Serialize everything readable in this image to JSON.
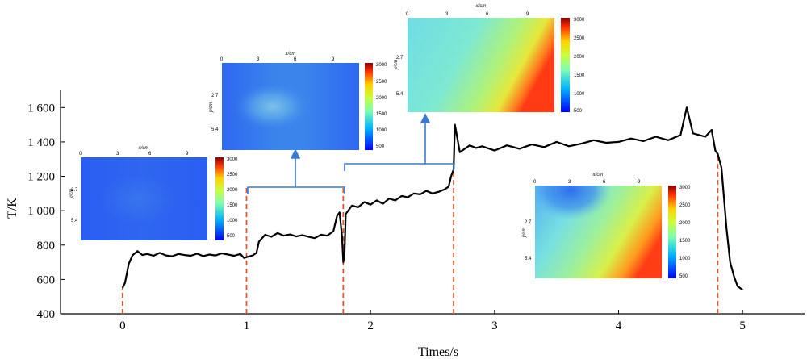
{
  "chart_data": {
    "type": "line",
    "title": "",
    "xlabel": "Times/s",
    "ylabel": "T/K",
    "xlim": [
      -0.5,
      5.5
    ],
    "ylim": [
      400,
      1700
    ],
    "x_ticks": [
      0,
      1,
      2,
      3,
      4,
      5
    ],
    "x_tick_labels": [
      "0",
      "1",
      "2",
      "3",
      "4",
      "5"
    ],
    "y_ticks": [
      400,
      600,
      800,
      1000,
      1200,
      1400,
      1600
    ],
    "y_tick_labels": [
      "400",
      "600",
      "800",
      "1 000",
      "1 200",
      "1 400",
      "1 600"
    ],
    "grid": false,
    "line_color": "#000000",
    "marker_line_color": "#e8542a",
    "connector_color": "#3a7bd5",
    "stage_markers_x": [
      0,
      1,
      1.78,
      2.67,
      4.8
    ],
    "series": [
      {
        "values": [
          [
            0.0,
            550
          ],
          [
            0.02,
            580
          ],
          [
            0.05,
            690
          ],
          [
            0.08,
            740
          ],
          [
            0.12,
            765
          ],
          [
            0.16,
            742
          ],
          [
            0.2,
            748
          ],
          [
            0.25,
            738
          ],
          [
            0.3,
            755
          ],
          [
            0.35,
            740
          ],
          [
            0.4,
            735
          ],
          [
            0.45,
            748
          ],
          [
            0.5,
            742
          ],
          [
            0.55,
            738
          ],
          [
            0.6,
            750
          ],
          [
            0.65,
            736
          ],
          [
            0.7,
            745
          ],
          [
            0.75,
            740
          ],
          [
            0.8,
            752
          ],
          [
            0.85,
            745
          ],
          [
            0.9,
            738
          ],
          [
            0.95,
            748
          ],
          [
            0.98,
            725
          ],
          [
            1.0,
            730
          ],
          [
            1.05,
            740
          ],
          [
            1.08,
            755
          ],
          [
            1.1,
            820
          ],
          [
            1.15,
            860
          ],
          [
            1.2,
            848
          ],
          [
            1.25,
            870
          ],
          [
            1.3,
            855
          ],
          [
            1.35,
            862
          ],
          [
            1.4,
            850
          ],
          [
            1.45,
            858
          ],
          [
            1.5,
            848
          ],
          [
            1.55,
            840
          ],
          [
            1.6,
            860
          ],
          [
            1.65,
            855
          ],
          [
            1.7,
            880
          ],
          [
            1.73,
            970
          ],
          [
            1.75,
            990
          ],
          [
            1.77,
            850
          ],
          [
            1.78,
            700
          ],
          [
            1.79,
            750
          ],
          [
            1.8,
            980
          ],
          [
            1.85,
            1030
          ],
          [
            1.9,
            1020
          ],
          [
            1.95,
            1050
          ],
          [
            2.0,
            1035
          ],
          [
            2.05,
            1060
          ],
          [
            2.1,
            1040
          ],
          [
            2.15,
            1070
          ],
          [
            2.2,
            1060
          ],
          [
            2.25,
            1085
          ],
          [
            2.3,
            1078
          ],
          [
            2.35,
            1100
          ],
          [
            2.4,
            1095
          ],
          [
            2.45,
            1115
          ],
          [
            2.5,
            1100
          ],
          [
            2.55,
            1110
          ],
          [
            2.6,
            1125
          ],
          [
            2.63,
            1140
          ],
          [
            2.65,
            1200
          ],
          [
            2.67,
            1240
          ],
          [
            2.68,
            1500
          ],
          [
            2.72,
            1340
          ],
          [
            2.8,
            1380
          ],
          [
            2.85,
            1365
          ],
          [
            2.9,
            1375
          ],
          [
            3.0,
            1350
          ],
          [
            3.1,
            1380
          ],
          [
            3.2,
            1360
          ],
          [
            3.3,
            1385
          ],
          [
            3.4,
            1370
          ],
          [
            3.5,
            1400
          ],
          [
            3.6,
            1375
          ],
          [
            3.7,
            1390
          ],
          [
            3.8,
            1410
          ],
          [
            3.9,
            1395
          ],
          [
            4.0,
            1400
          ],
          [
            4.1,
            1420
          ],
          [
            4.2,
            1405
          ],
          [
            4.3,
            1430
          ],
          [
            4.4,
            1410
          ],
          [
            4.5,
            1440
          ],
          [
            4.55,
            1600
          ],
          [
            4.6,
            1450
          ],
          [
            4.7,
            1430
          ],
          [
            4.75,
            1470
          ],
          [
            4.78,
            1350
          ],
          [
            4.8,
            1330
          ],
          [
            4.83,
            1250
          ],
          [
            4.87,
            900
          ],
          [
            4.9,
            700
          ],
          [
            4.93,
            620
          ],
          [
            4.96,
            560
          ],
          [
            5.0,
            540
          ]
        ]
      }
    ],
    "insets": [
      {
        "x_axis_label": "x/cm",
        "y_axis_label": "y/cm",
        "x_ticks": [
          "0",
          "3",
          "6",
          "9"
        ],
        "y_ticks": [
          "0",
          "2.7",
          "5.4"
        ],
        "colorbar_ticks": [
          "3000",
          "2500",
          "2000",
          "1500",
          "1000",
          "500"
        ],
        "colorbar_range": [
          500,
          3000
        ]
      },
      {
        "x_axis_label": "x/cm",
        "y_axis_label": "y/cm",
        "x_ticks": [
          "0",
          "3",
          "6",
          "9"
        ],
        "y_ticks": [
          "0",
          "2.7",
          "5.4"
        ],
        "colorbar_ticks": [
          "3000",
          "2500",
          "2000",
          "1500",
          "1000",
          "500"
        ],
        "colorbar_range": [
          500,
          3000
        ]
      },
      {
        "x_axis_label": "x/cm",
        "y_axis_label": "y/cm",
        "x_ticks": [
          "0",
          "3",
          "6",
          "9"
        ],
        "y_ticks": [
          "0",
          "2.7",
          "5.4"
        ],
        "colorbar_ticks": [
          "3000",
          "2500",
          "2000",
          "1500",
          "1000",
          "500"
        ],
        "colorbar_range": [
          500,
          3000
        ]
      },
      {
        "x_axis_label": "x/cm",
        "y_axis_label": "y/cm",
        "x_ticks": [
          "0",
          "3",
          "6",
          "9"
        ],
        "y_ticks": [
          "0",
          "2.7",
          "5.4"
        ],
        "colorbar_ticks": [
          "3000",
          "2500",
          "2000",
          "1500",
          "1000",
          "500"
        ],
        "colorbar_range": [
          500,
          3000
        ]
      }
    ]
  }
}
